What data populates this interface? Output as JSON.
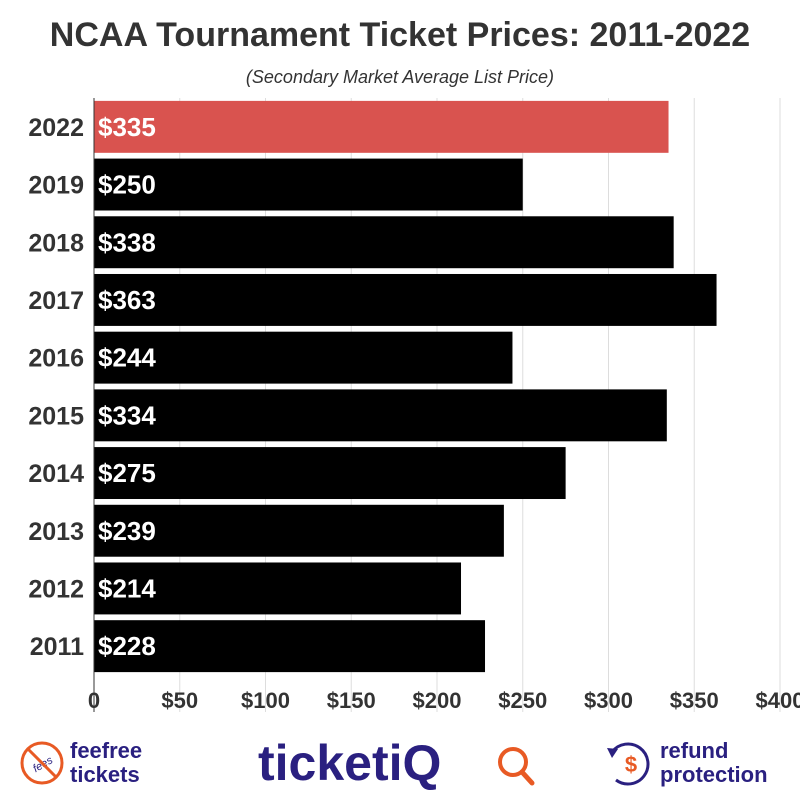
{
  "chart_data": {
    "type": "bar",
    "orientation": "horizontal",
    "title": "NCAA Tournament Ticket Prices: 2011-2022",
    "subtitle": "(Secondary Market Average List Price)",
    "categories": [
      "2022",
      "2019",
      "2018",
      "2017",
      "2016",
      "2015",
      "2014",
      "2013",
      "2012",
      "2011"
    ],
    "values": [
      335,
      250,
      338,
      363,
      244,
      334,
      275,
      239,
      214,
      228
    ],
    "data_labels": [
      "$335",
      "$250",
      "$338",
      "$363",
      "$244",
      "$334",
      "$275",
      "$239",
      "$214",
      "$228"
    ],
    "highlight_category": "2022",
    "xlim": [
      0,
      400
    ],
    "x_ticks": [
      0,
      50,
      100,
      150,
      200,
      250,
      300,
      350,
      400
    ],
    "x_tick_labels": [
      "0",
      "$50",
      "$100",
      "$150",
      "$200",
      "$250",
      "$300",
      "$350",
      "$400"
    ],
    "grid": true,
    "colors": {
      "bar": "#000000",
      "highlight": "#d9534f",
      "label": "#ffffff",
      "text": "#333333",
      "grid": "#dddddd"
    }
  },
  "footer": {
    "left_logo": {
      "icon": "fees-crossed-icon",
      "badge": "fees",
      "line1": "feefree",
      "line2": "tickets",
      "color": "#2a2080",
      "accent": "#e85a24"
    },
    "center_logo": {
      "text": "ticketiQ",
      "color": "#2a2080",
      "accent": "#e85a24"
    },
    "right_logo": {
      "icon": "dollar-refresh-icon",
      "line1": "refund",
      "line2": "protection",
      "color": "#2a2080",
      "accent": "#e85a24"
    }
  }
}
